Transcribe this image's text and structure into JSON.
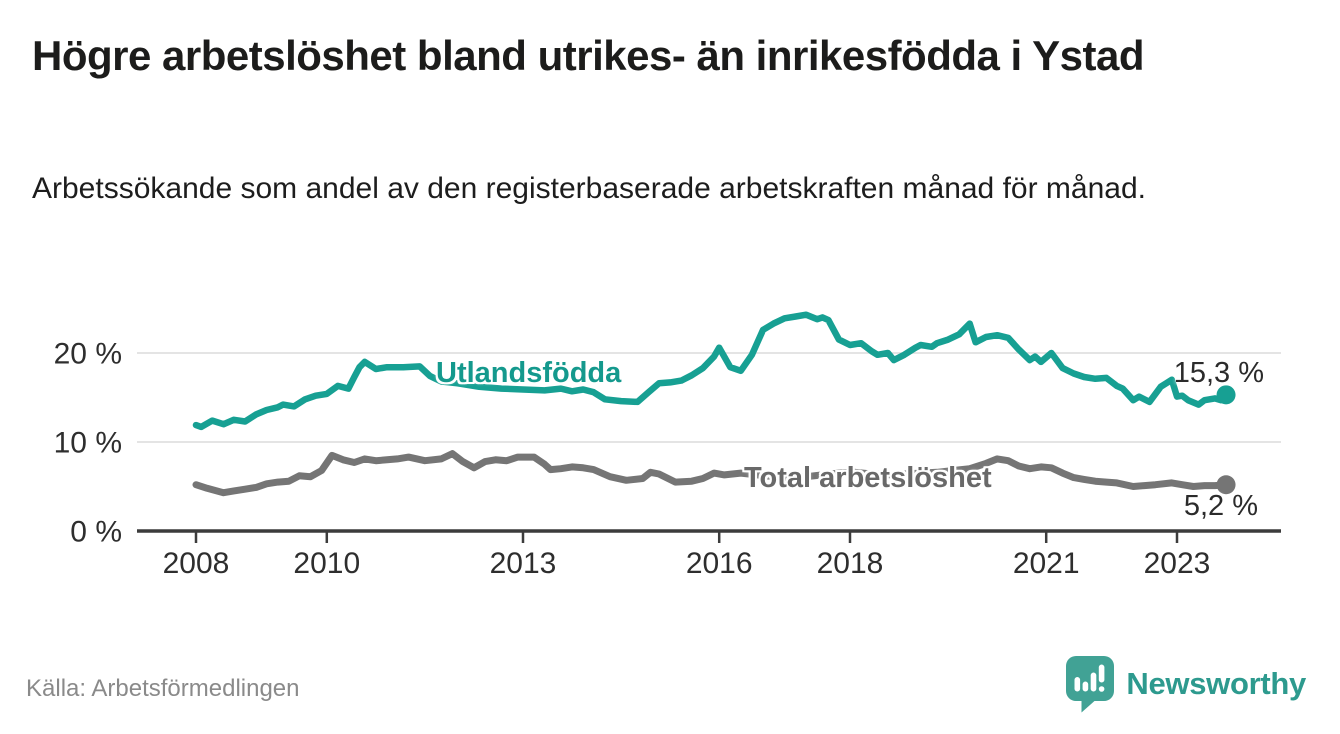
{
  "header": {
    "title": "Högre arbetslöshet bland utrikes- än inrikesfödda i Ystad",
    "subtitle": "Arbetssökande som andel av den registerbaserade arbetskraften månad för månad."
  },
  "footer": {
    "source": "Källa: Arbetsförmedlingen",
    "brand": "Newsworthy",
    "brand_icon": "newsworthy-chart-bubble-icon"
  },
  "colors": {
    "accent_teal": "#17a093",
    "line_gray": "#757575",
    "grid": "#dcdcdc",
    "axis": "#3c3c3c",
    "tick_text": "#2e2e2e",
    "label_text": "#2b2b2b",
    "brand_teal": "#2d9a8e",
    "brand_bubble": "#41a295"
  },
  "chart_data": {
    "type": "line",
    "title": "Högre arbetslöshet bland utrikes- än inrikesfödda i Ystad",
    "xlabel": "",
    "ylabel": "",
    "unit": "%",
    "grid": "horizontal-y",
    "xlim": [
      2007.2,
      2024.4
    ],
    "ylim": [
      0,
      25
    ],
    "x_ticks": [
      2008,
      2010,
      2013,
      2016,
      2018,
      2021,
      2023
    ],
    "x_tick_labels": [
      "2008",
      "2010",
      "2013",
      "2016",
      "2018",
      "2021",
      "2023"
    ],
    "y_ticks": [
      0,
      10,
      20
    ],
    "y_tick_labels": [
      "0 %",
      "10 %",
      "20 %"
    ],
    "legend_position": "inline-labels",
    "series": [
      {
        "name": "Utlandsfödda",
        "color": "#17a093",
        "stroke_width": 6.5,
        "end_value": 15.3,
        "end_label": "15,3 %",
        "points": [
          [
            2008.0,
            11.9
          ],
          [
            2008.08,
            11.7
          ],
          [
            2008.25,
            12.4
          ],
          [
            2008.42,
            12.0
          ],
          [
            2008.58,
            12.5
          ],
          [
            2008.75,
            12.3
          ],
          [
            2008.92,
            13.1
          ],
          [
            2009.08,
            13.6
          ],
          [
            2009.25,
            13.9
          ],
          [
            2009.33,
            14.2
          ],
          [
            2009.5,
            14.0
          ],
          [
            2009.67,
            14.8
          ],
          [
            2009.83,
            15.2
          ],
          [
            2010.0,
            15.4
          ],
          [
            2010.17,
            16.3
          ],
          [
            2010.33,
            16.0
          ],
          [
            2010.42,
            17.3
          ],
          [
            2010.5,
            18.4
          ],
          [
            2010.58,
            19.0
          ],
          [
            2010.75,
            18.2
          ],
          [
            2010.92,
            18.4
          ],
          [
            2011.17,
            18.4
          ],
          [
            2011.42,
            18.5
          ],
          [
            2011.58,
            17.4
          ],
          [
            2011.75,
            16.8
          ],
          [
            2012.0,
            16.6
          ],
          [
            2012.33,
            16.2
          ],
          [
            2012.67,
            16.0
          ],
          [
            2013.0,
            15.9
          ],
          [
            2013.33,
            15.8
          ],
          [
            2013.58,
            16.0
          ],
          [
            2013.75,
            15.7
          ],
          [
            2013.92,
            15.9
          ],
          [
            2014.08,
            15.6
          ],
          [
            2014.25,
            14.8
          ],
          [
            2014.5,
            14.6
          ],
          [
            2014.75,
            14.5
          ],
          [
            2014.92,
            15.6
          ],
          [
            2015.08,
            16.6
          ],
          [
            2015.25,
            16.7
          ],
          [
            2015.42,
            16.9
          ],
          [
            2015.58,
            17.5
          ],
          [
            2015.75,
            18.3
          ],
          [
            2015.92,
            19.6
          ],
          [
            2016.0,
            20.6
          ],
          [
            2016.17,
            18.4
          ],
          [
            2016.33,
            18.0
          ],
          [
            2016.5,
            19.8
          ],
          [
            2016.67,
            22.6
          ],
          [
            2016.83,
            23.3
          ],
          [
            2017.0,
            23.9
          ],
          [
            2017.17,
            24.1
          ],
          [
            2017.33,
            24.3
          ],
          [
            2017.5,
            23.8
          ],
          [
            2017.58,
            24.0
          ],
          [
            2017.67,
            23.7
          ],
          [
            2017.83,
            21.5
          ],
          [
            2018.0,
            20.9
          ],
          [
            2018.17,
            21.1
          ],
          [
            2018.33,
            20.2
          ],
          [
            2018.42,
            19.8
          ],
          [
            2018.58,
            20.0
          ],
          [
            2018.67,
            19.2
          ],
          [
            2018.83,
            19.8
          ],
          [
            2019.0,
            20.6
          ],
          [
            2019.08,
            20.9
          ],
          [
            2019.25,
            20.7
          ],
          [
            2019.33,
            21.1
          ],
          [
            2019.5,
            21.5
          ],
          [
            2019.67,
            22.1
          ],
          [
            2019.83,
            23.3
          ],
          [
            2019.92,
            21.2
          ],
          [
            2020.08,
            21.8
          ],
          [
            2020.25,
            22.0
          ],
          [
            2020.42,
            21.7
          ],
          [
            2020.58,
            20.4
          ],
          [
            2020.75,
            19.2
          ],
          [
            2020.83,
            19.6
          ],
          [
            2020.92,
            19.0
          ],
          [
            2021.08,
            20.0
          ],
          [
            2021.25,
            18.3
          ],
          [
            2021.42,
            17.7
          ],
          [
            2021.58,
            17.3
          ],
          [
            2021.75,
            17.1
          ],
          [
            2021.92,
            17.2
          ],
          [
            2022.08,
            16.3
          ],
          [
            2022.17,
            16.0
          ],
          [
            2022.33,
            14.7
          ],
          [
            2022.42,
            15.1
          ],
          [
            2022.58,
            14.5
          ],
          [
            2022.75,
            16.2
          ],
          [
            2022.92,
            17.0
          ],
          [
            2023.0,
            15.1
          ],
          [
            2023.08,
            15.2
          ],
          [
            2023.17,
            14.7
          ],
          [
            2023.33,
            14.2
          ],
          [
            2023.42,
            14.7
          ],
          [
            2023.58,
            14.9
          ],
          [
            2023.67,
            14.7
          ],
          [
            2023.75,
            15.3
          ]
        ]
      },
      {
        "name": "Total arbetslöshet",
        "color": "#757575",
        "stroke_width": 7,
        "end_value": 5.2,
        "end_label": "5,2 %",
        "points": [
          [
            2008.0,
            5.2
          ],
          [
            2008.17,
            4.8
          ],
          [
            2008.42,
            4.3
          ],
          [
            2008.58,
            4.5
          ],
          [
            2008.75,
            4.7
          ],
          [
            2008.92,
            4.9
          ],
          [
            2009.08,
            5.3
          ],
          [
            2009.25,
            5.5
          ],
          [
            2009.42,
            5.6
          ],
          [
            2009.58,
            6.2
          ],
          [
            2009.75,
            6.1
          ],
          [
            2009.92,
            6.8
          ],
          [
            2010.08,
            8.5
          ],
          [
            2010.25,
            8.0
          ],
          [
            2010.42,
            7.7
          ],
          [
            2010.58,
            8.1
          ],
          [
            2010.75,
            7.9
          ],
          [
            2010.92,
            8.0
          ],
          [
            2011.08,
            8.1
          ],
          [
            2011.25,
            8.3
          ],
          [
            2011.5,
            7.9
          ],
          [
            2011.75,
            8.1
          ],
          [
            2011.92,
            8.7
          ],
          [
            2012.08,
            7.8
          ],
          [
            2012.25,
            7.1
          ],
          [
            2012.42,
            7.8
          ],
          [
            2012.58,
            8.0
          ],
          [
            2012.75,
            7.9
          ],
          [
            2012.92,
            8.3
          ],
          [
            2013.17,
            8.3
          ],
          [
            2013.33,
            7.5
          ],
          [
            2013.42,
            6.9
          ],
          [
            2013.58,
            7.0
          ],
          [
            2013.75,
            7.2
          ],
          [
            2013.92,
            7.1
          ],
          [
            2014.08,
            6.9
          ],
          [
            2014.33,
            6.1
          ],
          [
            2014.58,
            5.7
          ],
          [
            2014.83,
            5.9
          ],
          [
            2014.95,
            6.6
          ],
          [
            2015.08,
            6.4
          ],
          [
            2015.33,
            5.5
          ],
          [
            2015.58,
            5.6
          ],
          [
            2015.75,
            5.9
          ],
          [
            2015.92,
            6.5
          ],
          [
            2016.08,
            6.3
          ],
          [
            2016.33,
            6.5
          ],
          [
            2016.58,
            6.3
          ],
          [
            2016.83,
            6.1
          ],
          [
            2017.08,
            6.0
          ],
          [
            2017.33,
            6.1
          ],
          [
            2017.58,
            6.3
          ],
          [
            2017.83,
            6.5
          ],
          [
            2018.08,
            6.6
          ],
          [
            2018.33,
            6.4
          ],
          [
            2018.58,
            6.3
          ],
          [
            2018.83,
            6.4
          ],
          [
            2019.08,
            6.5
          ],
          [
            2019.33,
            6.6
          ],
          [
            2019.58,
            6.8
          ],
          [
            2019.83,
            7.0
          ],
          [
            2020.08,
            7.6
          ],
          [
            2020.25,
            8.1
          ],
          [
            2020.42,
            7.9
          ],
          [
            2020.58,
            7.3
          ],
          [
            2020.75,
            7.0
          ],
          [
            2020.92,
            7.2
          ],
          [
            2021.08,
            7.1
          ],
          [
            2021.25,
            6.5
          ],
          [
            2021.42,
            6.0
          ],
          [
            2021.58,
            5.8
          ],
          [
            2021.75,
            5.6
          ],
          [
            2021.92,
            5.5
          ],
          [
            2022.08,
            5.4
          ],
          [
            2022.33,
            5.0
          ],
          [
            2022.5,
            5.1
          ],
          [
            2022.67,
            5.2
          ],
          [
            2022.92,
            5.4
          ],
          [
            2023.08,
            5.2
          ],
          [
            2023.25,
            5.0
          ],
          [
            2023.42,
            5.1
          ],
          [
            2023.58,
            5.1
          ],
          [
            2023.75,
            5.2
          ]
        ]
      }
    ]
  }
}
